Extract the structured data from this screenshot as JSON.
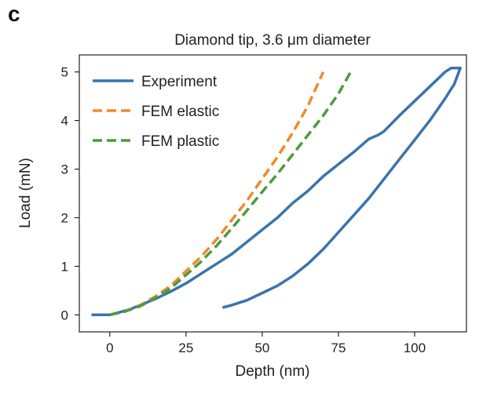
{
  "panel_label": "c",
  "chart_data": {
    "type": "line",
    "title": "Diamond tip, 3.6 μm diameter",
    "xlabel": "Depth (nm)",
    "ylabel": "Load (mN)",
    "xlim": [
      -10,
      117
    ],
    "ylim": [
      -0.35,
      5.35
    ],
    "xticks": [
      0,
      25,
      50,
      75,
      100
    ],
    "yticks": [
      0,
      1,
      2,
      3,
      4,
      5
    ],
    "grid": false,
    "legend_position": "top-left",
    "series": [
      {
        "name": "Experiment",
        "color": "#3a74ad",
        "dash": "solid",
        "x": [
          -6,
          -2,
          0,
          3,
          6,
          10,
          15,
          20,
          25,
          30,
          35,
          40,
          45,
          50,
          55,
          60,
          65,
          70,
          75,
          80,
          85,
          88,
          90,
          95,
          100,
          105,
          110,
          112,
          115,
          113,
          110,
          105,
          100,
          95,
          90,
          85,
          80,
          75,
          70,
          65,
          60,
          55,
          50,
          45,
          40,
          37
        ],
        "y": [
          0.0,
          0.0,
          0.0,
          0.05,
          0.1,
          0.2,
          0.33,
          0.48,
          0.65,
          0.85,
          1.05,
          1.25,
          1.5,
          1.75,
          2.0,
          2.3,
          2.55,
          2.85,
          3.1,
          3.35,
          3.62,
          3.7,
          3.78,
          4.1,
          4.4,
          4.7,
          5.0,
          5.08,
          5.08,
          4.75,
          4.45,
          4.0,
          3.6,
          3.2,
          2.8,
          2.4,
          2.05,
          1.7,
          1.35,
          1.05,
          0.8,
          0.6,
          0.45,
          0.3,
          0.2,
          0.15
        ]
      },
      {
        "name": "FEM elastic",
        "color": "#f08a2c",
        "dash": "dashed",
        "x": [
          0,
          5,
          10,
          15,
          20,
          25,
          30,
          35,
          40,
          45,
          50,
          55,
          60,
          65,
          70
        ],
        "y": [
          0.0,
          0.07,
          0.2,
          0.38,
          0.6,
          0.9,
          1.2,
          1.55,
          1.95,
          2.35,
          2.8,
          3.25,
          3.75,
          4.3,
          5.0
        ]
      },
      {
        "name": "FEM plastic",
        "color": "#4d9a3f",
        "dash": "dashed",
        "x": [
          0,
          5,
          10,
          15,
          20,
          25,
          30,
          35,
          40,
          45,
          50,
          55,
          60,
          65,
          70,
          75,
          79
        ],
        "y": [
          0.0,
          0.07,
          0.18,
          0.35,
          0.55,
          0.82,
          1.1,
          1.42,
          1.78,
          2.15,
          2.53,
          2.9,
          3.3,
          3.7,
          4.1,
          4.55,
          5.0
        ]
      }
    ]
  }
}
